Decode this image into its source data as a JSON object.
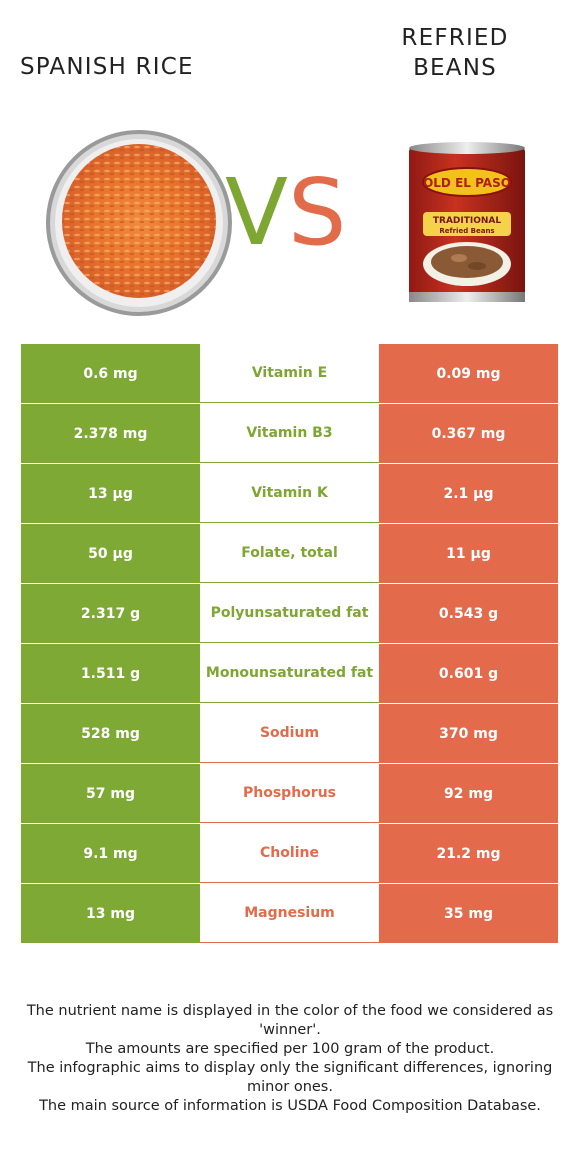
{
  "header": {
    "left_food": "SPANISH RICE",
    "right_food_line1": "REFRIED",
    "right_food_line2": "BEANS",
    "vs_v": "V",
    "vs_s": "S"
  },
  "images": {
    "left": "bowl-of-spanish-rice",
    "right": "can-of-refried-beans",
    "right_brand": "OLD EL PASO",
    "right_label_line1": "TRADITIONAL",
    "right_label_line2": "Refried Beans"
  },
  "colors": {
    "left_food": "#7da934",
    "right_food": "#e36b4c"
  },
  "rows": [
    {
      "left": "0.6 mg",
      "nutrient": "Vitamin E",
      "right": "0.09 mg",
      "winner": "left"
    },
    {
      "left": "2.378 mg",
      "nutrient": "Vitamin B3",
      "right": "0.367 mg",
      "winner": "left"
    },
    {
      "left": "13 µg",
      "nutrient": "Vitamin K",
      "right": "2.1 µg",
      "winner": "left"
    },
    {
      "left": "50 µg",
      "nutrient": "Folate, total",
      "right": "11 µg",
      "winner": "left"
    },
    {
      "left": "2.317 g",
      "nutrient": "Polyunsaturated fat",
      "right": "0.543 g",
      "winner": "left"
    },
    {
      "left": "1.511 g",
      "nutrient": "Monounsaturated fat",
      "right": "0.601 g",
      "winner": "left"
    },
    {
      "left": "528 mg",
      "nutrient": "Sodium",
      "right": "370 mg",
      "winner": "right"
    },
    {
      "left": "57 mg",
      "nutrient": "Phosphorus",
      "right": "92 mg",
      "winner": "right"
    },
    {
      "left": "9.1 mg",
      "nutrient": "Choline",
      "right": "21.2 mg",
      "winner": "right"
    },
    {
      "left": "13 mg",
      "nutrient": "Magnesium",
      "right": "35 mg",
      "winner": "right"
    }
  ],
  "footer": {
    "line1": "The nutrient name is displayed in the color of the food we considered as 'winner'.",
    "line2": "The amounts are specified per 100 gram of the product.",
    "line3": "The infographic aims to display only the significant differences, ignoring minor ones.",
    "line4": "The main source of information is USDA Food Composition Database."
  }
}
